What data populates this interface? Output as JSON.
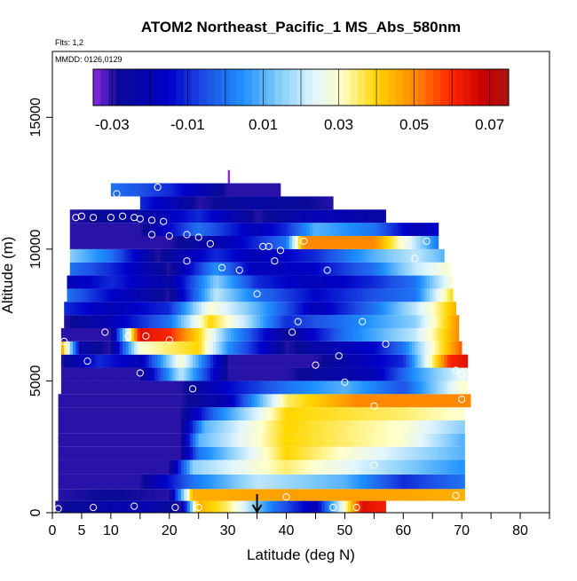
{
  "chart_data": {
    "type": "heatmap",
    "title": "ATOM2 Northeast_Pacific_1 MS_Abs_580nm",
    "subtitle": "Flts: 1,2",
    "date_label": "MMDD: 0126,0129",
    "xlabel": "Latitude (deg N)",
    "ylabel": "Altitude (m)",
    "xlim": [
      0,
      85
    ],
    "ylim": [
      0,
      17500
    ],
    "x_ticks": [
      0,
      5,
      10,
      20,
      30,
      40,
      50,
      60,
      70,
      80
    ],
    "y_ticks": [
      0,
      5000,
      10000,
      15000
    ],
    "colorbar": {
      "range": [
        -0.035,
        0.075
      ],
      "tick_values": [
        -0.03,
        -0.01,
        0.01,
        0.03,
        0.05,
        0.07
      ],
      "tick_labels": [
        "-0.03",
        "-0.01",
        "0.01",
        "0.03",
        "0.05",
        "0.07"
      ]
    },
    "bands": [
      {
        "y0": 0,
        "y1": 450,
        "x0": 0.5,
        "x1": 57,
        "values": [
          [
            0,
            -0.03
          ],
          [
            8,
            -0.025
          ],
          [
            15,
            -0.02
          ],
          [
            22,
            -0.03
          ],
          [
            25,
            0.045
          ],
          [
            30,
            0.035
          ],
          [
            38,
            0.0
          ],
          [
            45,
            -0.02
          ],
          [
            50,
            0.03
          ],
          [
            53,
            0.065
          ],
          [
            56,
            0.062
          ]
        ]
      },
      {
        "y0": 450,
        "y1": 900,
        "x0": 1,
        "x1": 70.5,
        "values": [
          [
            1,
            -0.03
          ],
          [
            10,
            -0.028
          ],
          [
            20,
            -0.03
          ],
          [
            24,
            0.045
          ],
          [
            40,
            0.047
          ],
          [
            55,
            0.047
          ],
          [
            70,
            0.045
          ]
        ]
      },
      {
        "y0": 900,
        "y1": 1450,
        "x0": 1,
        "x1": 70.5,
        "values": [
          [
            1,
            -0.03
          ],
          [
            15,
            -0.03
          ],
          [
            24,
            0.0
          ],
          [
            35,
            0.02
          ],
          [
            50,
            0.01
          ],
          [
            60,
            -0.01
          ],
          [
            70,
            0.0
          ]
        ]
      },
      {
        "y0": 1450,
        "y1": 2000,
        "x0": 1,
        "x1": 70.5,
        "values": [
          [
            1,
            -0.03
          ],
          [
            20,
            -0.03
          ],
          [
            24,
            0.015
          ],
          [
            40,
            0.035
          ],
          [
            55,
            0.02
          ],
          [
            70,
            0.005
          ]
        ]
      },
      {
        "y0": 2000,
        "y1": 2500,
        "x0": 1,
        "x1": 70.5,
        "values": [
          [
            1,
            -0.03
          ],
          [
            22,
            -0.03
          ],
          [
            25,
            0.0
          ],
          [
            40,
            0.04
          ],
          [
            55,
            0.025
          ],
          [
            70,
            0.01
          ]
        ]
      },
      {
        "y0": 2500,
        "y1": 3000,
        "x0": 1,
        "x1": 70.5,
        "values": [
          [
            1,
            -0.03
          ],
          [
            22,
            -0.03
          ],
          [
            25,
            0.01
          ],
          [
            40,
            0.04
          ],
          [
            60,
            0.03
          ],
          [
            70,
            0.01
          ]
        ]
      },
      {
        "y0": 3000,
        "y1": 3500,
        "x0": 1,
        "x1": 70.5,
        "values": [
          [
            1,
            -0.03
          ],
          [
            22,
            -0.03
          ],
          [
            26,
            0.01
          ],
          [
            40,
            0.04
          ],
          [
            60,
            0.03
          ],
          [
            70,
            0.015
          ]
        ]
      },
      {
        "y0": 3500,
        "y1": 4000,
        "x0": 1,
        "x1": 70.5,
        "values": [
          [
            1,
            -0.03
          ],
          [
            22,
            -0.03
          ],
          [
            28,
            0.0
          ],
          [
            40,
            0.04
          ],
          [
            60,
            0.035
          ],
          [
            70,
            0.03
          ]
        ]
      },
      {
        "y0": 4000,
        "y1": 4500,
        "x0": 1,
        "x1": 71.5,
        "values": [
          [
            1,
            -0.03
          ],
          [
            22,
            -0.03
          ],
          [
            30,
            -0.02
          ],
          [
            40,
            0.035
          ],
          [
            52,
            0.05
          ],
          [
            71,
            0.05
          ]
        ]
      },
      {
        "y0": 4500,
        "y1": 5000,
        "x0": 1.5,
        "x1": 71,
        "values": [
          [
            1.5,
            -0.03
          ],
          [
            22,
            -0.03
          ],
          [
            30,
            -0.015
          ],
          [
            40,
            0.0
          ],
          [
            50,
            0.01
          ],
          [
            60,
            -0.005
          ],
          [
            70,
            0.03
          ]
        ]
      },
      {
        "y0": 5000,
        "y1": 5500,
        "x0": 1.5,
        "x1": 71,
        "values": [
          [
            1.5,
            -0.03
          ],
          [
            15,
            -0.03
          ],
          [
            22,
            0.02
          ],
          [
            30,
            -0.03
          ],
          [
            40,
            -0.03
          ],
          [
            55,
            -0.02
          ],
          [
            62,
            0.005
          ],
          [
            70,
            0.025
          ]
        ]
      },
      {
        "y0": 5500,
        "y1": 6000,
        "x0": 1.5,
        "x1": 71,
        "values": [
          [
            1.5,
            -0.03
          ],
          [
            8,
            -0.01
          ],
          [
            15,
            -0.02
          ],
          [
            22,
            0.03
          ],
          [
            30,
            -0.03
          ],
          [
            45,
            -0.03
          ],
          [
            60,
            -0.01
          ],
          [
            68,
            0.06
          ],
          [
            71,
            0.065
          ]
        ]
      },
      {
        "y0": 6000,
        "y1": 6500,
        "x0": 1.5,
        "x1": 70,
        "values": [
          [
            1.5,
            0.05
          ],
          [
            5,
            -0.025
          ],
          [
            10,
            -0.03
          ],
          [
            15,
            0.03
          ],
          [
            25,
            0.04
          ],
          [
            30,
            0.005
          ],
          [
            40,
            -0.03
          ],
          [
            55,
            -0.015
          ],
          [
            60,
            0.0
          ],
          [
            65,
            0.03
          ],
          [
            70,
            0.055
          ]
        ]
      },
      {
        "y0": 6500,
        "y1": 7000,
        "x0": 1.5,
        "x1": 69.5,
        "values": [
          [
            1.5,
            -0.03
          ],
          [
            10,
            -0.03
          ],
          [
            15,
            0.065
          ],
          [
            20,
            0.06
          ],
          [
            25,
            0.04
          ],
          [
            30,
            0.01
          ],
          [
            40,
            -0.028
          ],
          [
            50,
            0.0
          ],
          [
            62,
            0.02
          ],
          [
            69.5,
            0.05
          ]
        ]
      },
      {
        "y0": 7000,
        "y1": 7500,
        "x0": 2,
        "x1": 69.5,
        "values": [
          [
            2,
            -0.03
          ],
          [
            10,
            -0.02
          ],
          [
            20,
            0.0
          ],
          [
            27,
            0.04
          ],
          [
            33,
            0.02
          ],
          [
            40,
            -0.01
          ],
          [
            50,
            0.0
          ],
          [
            62,
            0.015
          ],
          [
            69.5,
            0.05
          ]
        ]
      },
      {
        "y0": 7500,
        "y1": 8000,
        "x0": 2,
        "x1": 69,
        "values": [
          [
            2,
            -0.01
          ],
          [
            10,
            -0.02
          ],
          [
            20,
            -0.01
          ],
          [
            27,
            0.03
          ],
          [
            35,
            0.01
          ],
          [
            45,
            -0.02
          ],
          [
            55,
            0.0
          ],
          [
            62,
            0.02
          ],
          [
            69,
            0.045
          ]
        ]
      },
      {
        "y0": 8000,
        "y1": 8500,
        "x0": 2.5,
        "x1": 68.5,
        "values": [
          [
            2.5,
            0.0
          ],
          [
            10,
            -0.015
          ],
          [
            20,
            -0.03
          ],
          [
            28,
            0.02
          ],
          [
            35,
            0.0
          ],
          [
            45,
            -0.015
          ],
          [
            55,
            -0.005
          ],
          [
            62,
            0.0
          ],
          [
            68.5,
            0.04
          ]
        ]
      },
      {
        "y0": 8500,
        "y1": 9000,
        "x0": 2.5,
        "x1": 68.5,
        "values": [
          [
            2.5,
            -0.02
          ],
          [
            10,
            -0.01
          ],
          [
            20,
            -0.025
          ],
          [
            28,
            0.015
          ],
          [
            35,
            -0.01
          ],
          [
            45,
            -0.02
          ],
          [
            55,
            -0.01
          ],
          [
            62,
            0.0
          ],
          [
            68.5,
            0.03
          ]
        ]
      },
      {
        "y0": 9000,
        "y1": 9500,
        "x0": 3,
        "x1": 68,
        "values": [
          [
            3,
            0.0
          ],
          [
            10,
            -0.01
          ],
          [
            20,
            -0.03
          ],
          [
            28,
            0.005
          ],
          [
            35,
            -0.02
          ],
          [
            45,
            -0.015
          ],
          [
            55,
            0.0
          ],
          [
            62,
            0.02
          ],
          [
            68,
            0.03
          ]
        ]
      },
      {
        "y0": 9500,
        "y1": 10000,
        "x0": 3,
        "x1": 67,
        "values": [
          [
            3,
            0.015
          ],
          [
            10,
            0.0
          ],
          [
            18,
            -0.03
          ],
          [
            28,
            -0.01
          ],
          [
            35,
            -0.02
          ],
          [
            45,
            -0.01
          ],
          [
            55,
            0.01
          ],
          [
            62,
            0.02
          ],
          [
            67,
            0.01
          ]
        ]
      },
      {
        "y0": 10000,
        "y1": 10500,
        "x0": 3,
        "x1": 66,
        "values": [
          [
            3,
            -0.03
          ],
          [
            10,
            -0.03
          ],
          [
            20,
            -0.03
          ],
          [
            30,
            -0.02
          ],
          [
            40,
            0.0
          ],
          [
            43,
            0.05
          ],
          [
            55,
            0.05
          ],
          [
            62,
            0.02
          ],
          [
            66,
            0.0
          ]
        ]
      },
      {
        "y0": 10500,
        "y1": 11000,
        "x0": 3,
        "x1": 66,
        "values": [
          [
            3,
            -0.03
          ],
          [
            15,
            -0.03
          ],
          [
            25,
            0.0
          ],
          [
            35,
            -0.02
          ],
          [
            40,
            -0.01
          ],
          [
            45,
            0.01
          ],
          [
            55,
            0.0
          ],
          [
            62,
            -0.02
          ],
          [
            66,
            -0.015
          ]
        ]
      },
      {
        "y0": 11000,
        "y1": 11500,
        "x0": 3,
        "x1": 57,
        "values": [
          [
            3,
            -0.03
          ],
          [
            15,
            -0.025
          ],
          [
            25,
            -0.01
          ],
          [
            35,
            -0.03
          ],
          [
            45,
            -0.02
          ],
          [
            57,
            -0.025
          ]
        ]
      },
      {
        "y0": 11500,
        "y1": 12000,
        "x0": 15,
        "x1": 48,
        "values": [
          [
            15,
            -0.01
          ],
          [
            25,
            -0.03
          ],
          [
            35,
            -0.025
          ],
          [
            48,
            -0.03
          ]
        ]
      },
      {
        "y0": 12000,
        "y1": 12500,
        "x0": 10,
        "x1": 39,
        "values": [
          [
            10,
            0.0
          ],
          [
            20,
            -0.01
          ],
          [
            30,
            -0.03
          ],
          [
            39,
            -0.03
          ]
        ]
      },
      {
        "y0": 12500,
        "y1": 13000,
        "x0": 30,
        "x1": 30.3,
        "values": [
          [
            30,
            -0.035
          ],
          [
            30.3,
            -0.035
          ]
        ]
      }
    ],
    "sample_points": [
      [
        1,
        150
      ],
      [
        7,
        200
      ],
      [
        14,
        250
      ],
      [
        21,
        200
      ],
      [
        25,
        200
      ],
      [
        40,
        600
      ],
      [
        48,
        200
      ],
      [
        52,
        200
      ],
      [
        69,
        650
      ],
      [
        55,
        1800
      ],
      [
        24,
        4700
      ],
      [
        55,
        4050
      ],
      [
        70,
        4300
      ],
      [
        50,
        4950
      ],
      [
        6,
        5750
      ],
      [
        15,
        5300
      ],
      [
        45,
        5600
      ],
      [
        49,
        5950
      ],
      [
        69,
        5400
      ],
      [
        70,
        5250
      ],
      [
        2,
        6500
      ],
      [
        9,
        6850
      ],
      [
        13,
        6700
      ],
      [
        16,
        6700
      ],
      [
        20,
        6550
      ],
      [
        57,
        6400
      ],
      [
        27,
        7850
      ],
      [
        35,
        8300
      ],
      [
        42,
        7250
      ],
      [
        41,
        6850
      ],
      [
        53,
        7250
      ],
      [
        23,
        9550
      ],
      [
        29,
        9300
      ],
      [
        32,
        9200
      ],
      [
        38,
        9550
      ],
      [
        47,
        9200
      ],
      [
        62,
        9650
      ],
      [
        17,
        10550
      ],
      [
        20,
        10500
      ],
      [
        23,
        10550
      ],
      [
        25,
        10450
      ],
      [
        27,
        10200
      ],
      [
        36,
        10100
      ],
      [
        37,
        10100
      ],
      [
        39,
        9950
      ],
      [
        43,
        10300
      ],
      [
        60,
        10350
      ],
      [
        64,
        10300
      ],
      [
        4,
        11200
      ],
      [
        5,
        11250
      ],
      [
        7,
        11200
      ],
      [
        10,
        11200
      ],
      [
        12,
        11250
      ],
      [
        14,
        11200
      ],
      [
        15,
        11150
      ],
      [
        17,
        11100
      ],
      [
        19,
        11050
      ],
      [
        68,
        10900
      ],
      [
        11,
        12100
      ],
      [
        18,
        12350
      ]
    ],
    "arrow_latitude": 35
  }
}
